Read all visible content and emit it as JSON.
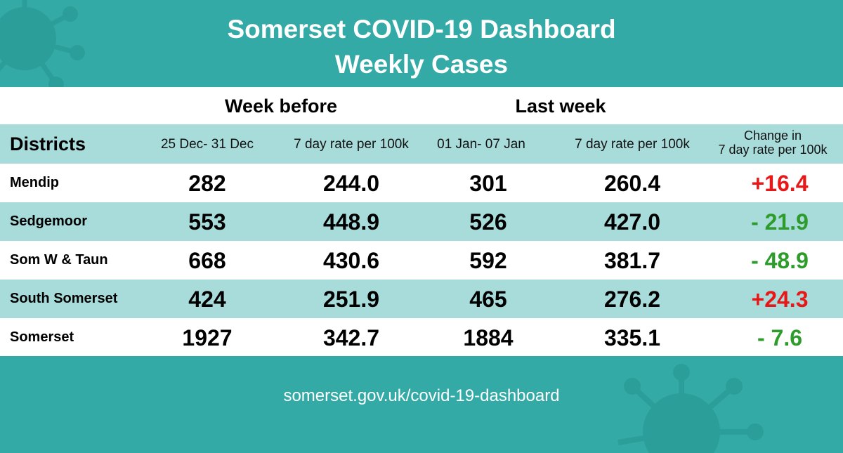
{
  "header": {
    "title_line1": "Somerset COVID-19 Dashboard",
    "title_line2": "Weekly Cases"
  },
  "table": {
    "week_before_label": "Week before",
    "last_week_label": "Last week",
    "districts_label": "Districts",
    "week_before_dates": "25 Dec- 31 Dec",
    "week_before_rate_label": "7 day rate per 100k",
    "last_week_dates": "01 Jan- 07 Jan",
    "last_week_rate_label": "7 day rate per 100k",
    "change_label_line1": "Change in",
    "change_label_line2": "7 day rate per 100k",
    "rows": [
      {
        "district": "Mendip",
        "wb_cases": "282",
        "wb_rate": "244.0",
        "lw_cases": "301",
        "lw_rate": "260.4",
        "change": "+16.4",
        "direction": "up"
      },
      {
        "district": "Sedgemoor",
        "wb_cases": "553",
        "wb_rate": "448.9",
        "lw_cases": "526",
        "lw_rate": "427.0",
        "change": "- 21.9",
        "direction": "down"
      },
      {
        "district": "Som W & Taun",
        "wb_cases": "668",
        "wb_rate": "430.6",
        "lw_cases": "592",
        "lw_rate": "381.7",
        "change": "- 48.9",
        "direction": "down"
      },
      {
        "district": "South Somerset",
        "wb_cases": "424",
        "wb_rate": "251.9",
        "lw_cases": "465",
        "lw_rate": "276.2",
        "change": "+24.3",
        "direction": "up"
      },
      {
        "district": "Somerset",
        "wb_cases": "1927",
        "wb_rate": "342.7",
        "lw_cases": "1884",
        "lw_rate": "335.1",
        "change": "- 7.6",
        "direction": "down"
      }
    ]
  },
  "footer": {
    "url": "somerset.gov.uk/covid-19-dashboard"
  },
  "colors": {
    "background_teal": "#34aaa6",
    "row_teal": "#a8dcdb",
    "increase": "#e81818",
    "decrease": "#2e9c2b"
  },
  "icons": {
    "top_left": "virus-icon",
    "bottom_right": "virus-icon"
  }
}
